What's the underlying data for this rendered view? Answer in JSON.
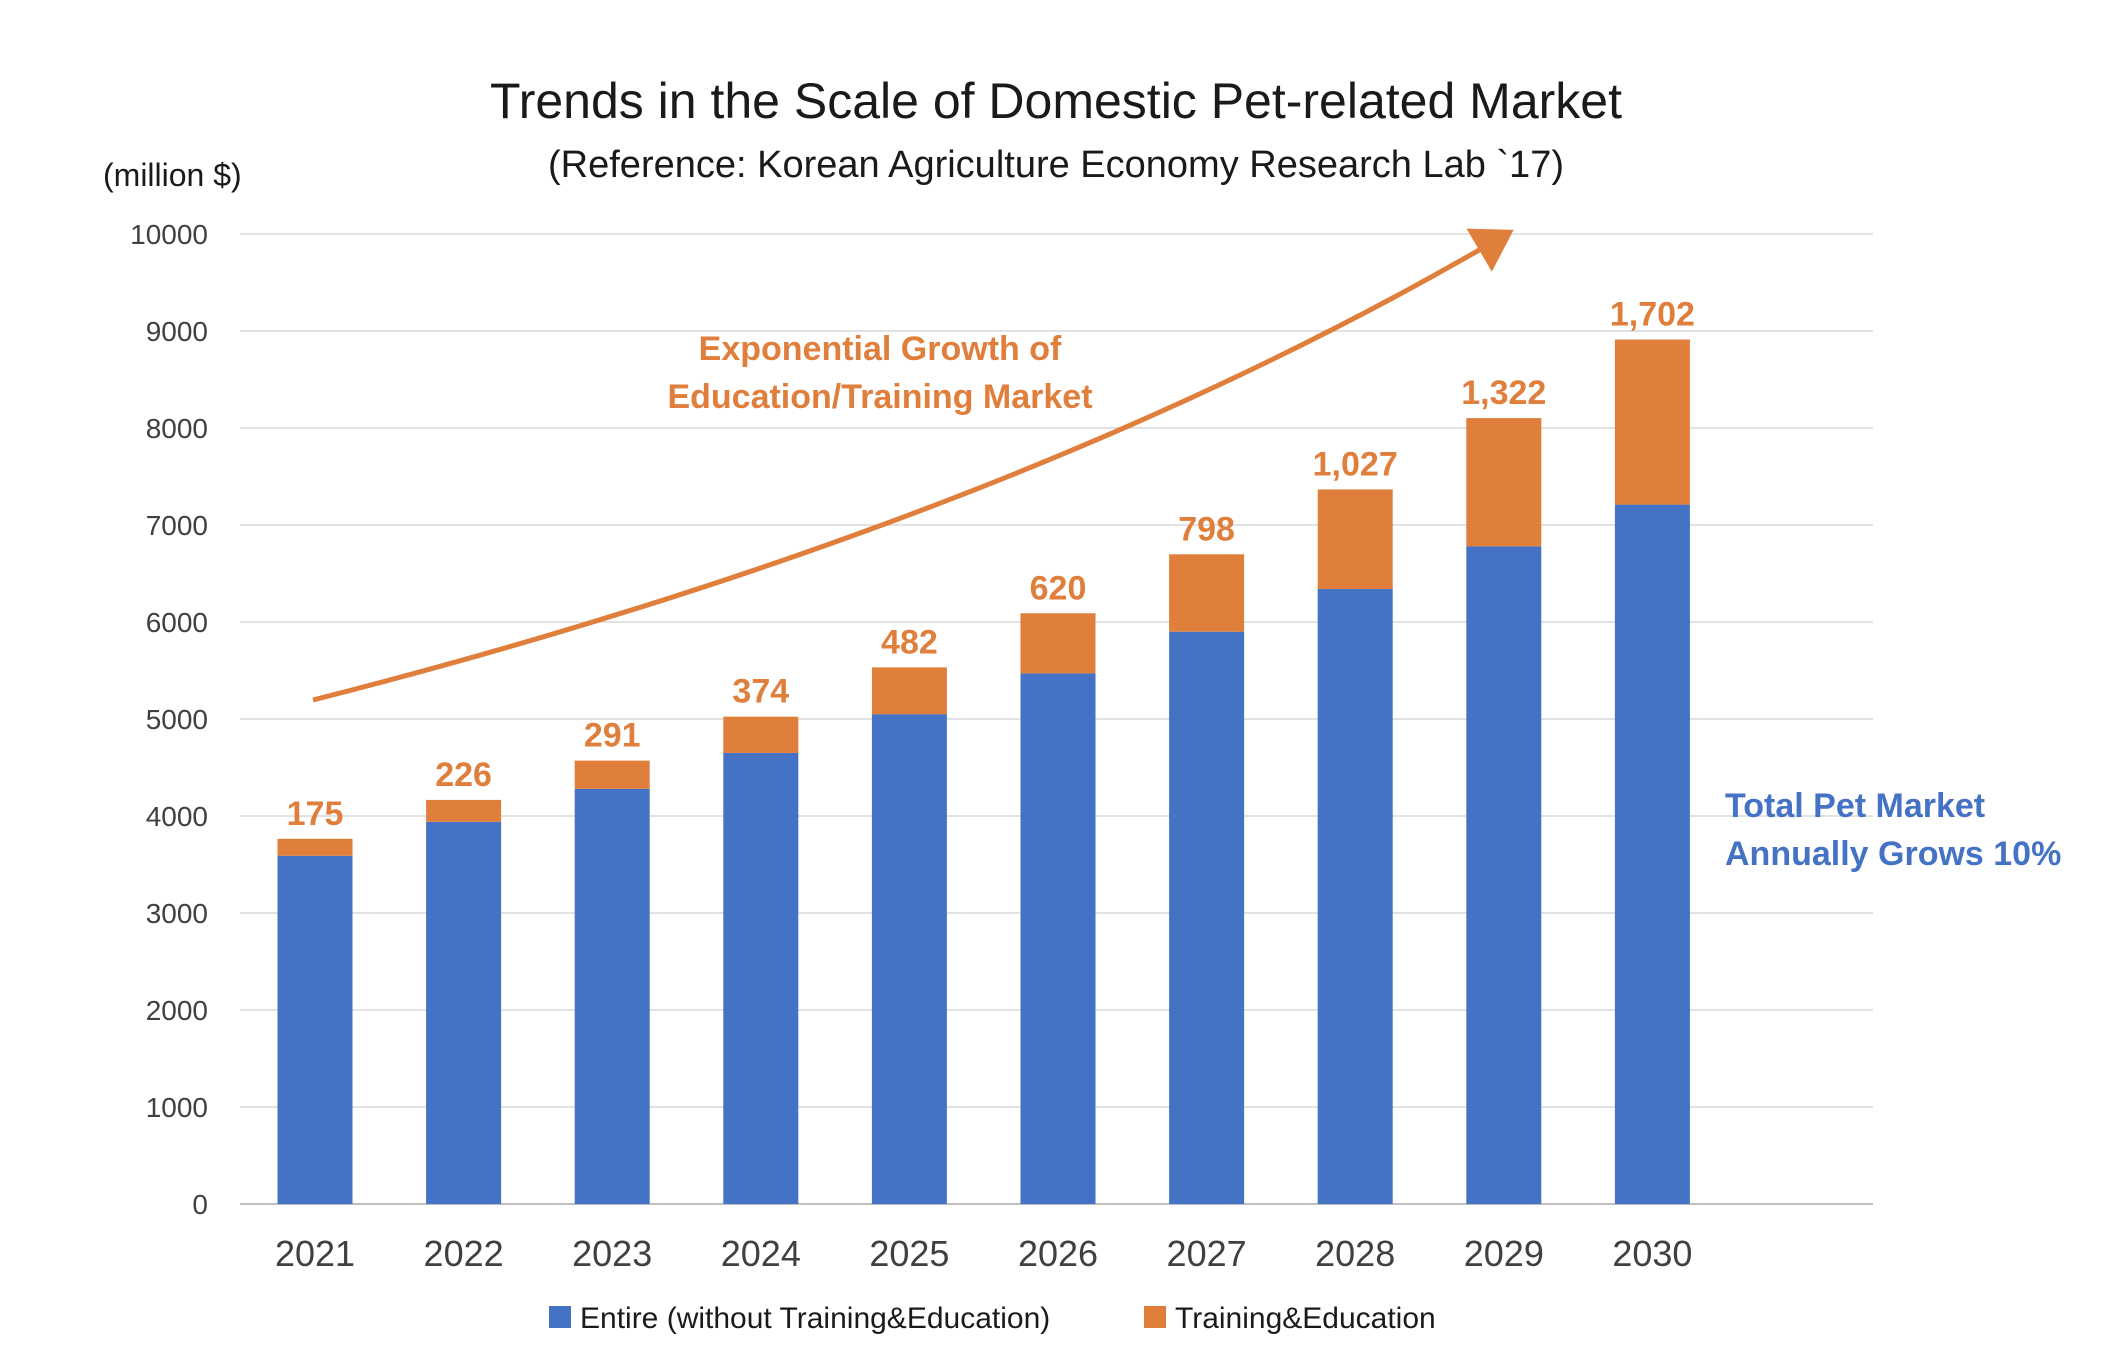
{
  "chart_data": {
    "type": "bar",
    "stacked": true,
    "title": "Trends in the Scale of Domestic Pet-related Market",
    "subtitle": "(Reference: Korean Agriculture Economy Research Lab `17)",
    "ylabel": "(million $)",
    "xlabel": "",
    "ylim": [
      0,
      10000
    ],
    "yticks": [
      0,
      1000,
      2000,
      3000,
      4000,
      5000,
      6000,
      7000,
      8000,
      9000,
      10000
    ],
    "grid": true,
    "legend_position": "bottom",
    "categories": [
      "2021",
      "2022",
      "2023",
      "2024",
      "2025",
      "2026",
      "2027",
      "2028",
      "2029",
      "2030"
    ],
    "series": [
      {
        "name": "Entire (without Training&Education)",
        "color": "#4472C4",
        "values": [
          3590,
          3940,
          4280,
          4650,
          5050,
          5470,
          5900,
          6340,
          6780,
          7210
        ]
      },
      {
        "name": "Training&Education",
        "color": "#E07E3C",
        "values": [
          175,
          226,
          291,
          374,
          482,
          620,
          798,
          1027,
          1322,
          1702
        ]
      }
    ],
    "data_labels": [
      "175",
      "226",
      "291",
      "374",
      "482",
      "620",
      "798",
      "1,027",
      "1,322",
      "1,702"
    ],
    "annotations": {
      "growth_line1": "Exponential Growth of",
      "growth_line2": "Education/Training Market",
      "growth_color": "#E07E3C",
      "total_line1": "Total Pet Market",
      "total_line2": "Annually Grows 10%",
      "total_color": "#4472C4"
    }
  }
}
